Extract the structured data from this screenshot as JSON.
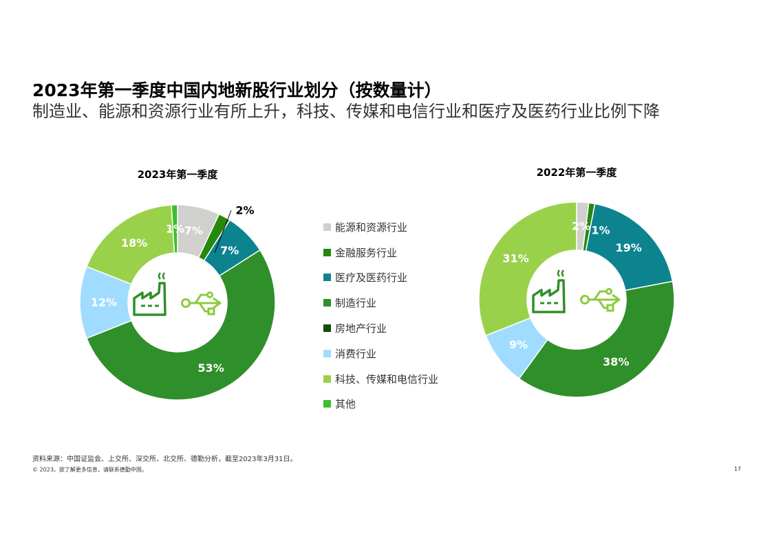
{
  "page": {
    "title": "2023年第一季度中国内地新股行业划分（按数量计）",
    "subtitle": "制造业、能源和资源行业有所上升，科技、传媒和电信行业和医疗及医药行业比例下降",
    "source_note": "资料来源：中国证监会、上交所、深交所、北交所、德勤分析，截至2023年3月31日。",
    "copyright": "© 2023。欲了解更多信息，请联系德勤中国。",
    "page_number": "17"
  },
  "legend": [
    {
      "label": "能源和资源行业",
      "color": "#D0D0CE"
    },
    {
      "label": "金融服务行业",
      "color": "#26890D"
    },
    {
      "label": "医疗及医药行业",
      "color": "#0D8390"
    },
    {
      "label": "制造行业",
      "color": "#2F8F2A"
    },
    {
      "label": "房地产行业",
      "color": "#134E08"
    },
    {
      "label": "消费行业",
      "color": "#A0DCFF"
    },
    {
      "label": "科技、传媒和电信行业",
      "color": "#9AD14B"
    },
    {
      "label": "其他",
      "color": "#3DBF2C"
    }
  ],
  "chart_data": [
    {
      "type": "pie",
      "donut": true,
      "title": "2023年第一季度",
      "categories": [
        "能源和资源行业",
        "金融服务行业",
        "医疗及医药行业",
        "制造行业",
        "房地产行业",
        "消费行业",
        "科技、传媒和电信行业",
        "其他"
      ],
      "values": [
        7,
        2,
        7,
        53,
        0,
        12,
        18,
        1
      ],
      "labels": [
        "7%",
        "2%",
        "7%",
        "53%",
        "",
        "12%",
        "18%",
        "1%"
      ],
      "colors": [
        "#D0D0CE",
        "#26890D",
        "#0D8390",
        "#2F8F2A",
        "#134E08",
        "#A0DCFF",
        "#9AD14B",
        "#3DBF2C"
      ]
    },
    {
      "type": "pie",
      "donut": true,
      "title": "2022年第一季度",
      "categories": [
        "能源和资源行业",
        "金融服务行业",
        "医疗及医药行业",
        "制造行业",
        "房地产行业",
        "消费行业",
        "科技、传媒和电信行业",
        "其他"
      ],
      "values": [
        2,
        1,
        19,
        38,
        0,
        9,
        31,
        0
      ],
      "labels": [
        "2%",
        "1%",
        "19%",
        "38%",
        "",
        "9%",
        "31%",
        ""
      ],
      "colors": [
        "#D0D0CE",
        "#26890D",
        "#0D8390",
        "#2F8F2A",
        "#134E08",
        "#A0DCFF",
        "#9AD14B",
        "#3DBF2C"
      ]
    }
  ]
}
